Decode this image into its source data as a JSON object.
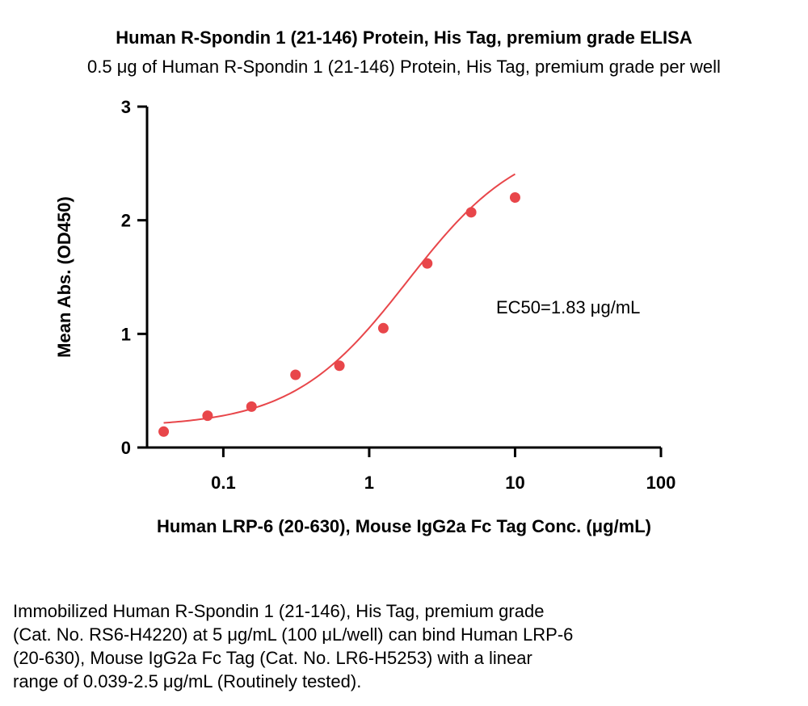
{
  "chart_data": {
    "type": "scatter",
    "title": "Human R-Spondin 1 (21-146) Protein, His Tag, premium grade ELISA",
    "subtitle": "0.5 μg of Human R-Spondin 1 (21-146) Protein, His Tag, premium grade per well",
    "xlabel": "Human LRP-6 (20-630), Mouse IgG2a Fc Tag Conc. (μg/mL)",
    "ylabel": "Mean Abs. (OD450)",
    "x_scale": "log",
    "xlim": [
      0.03,
      100
    ],
    "ylim": [
      0,
      3
    ],
    "x_ticks": [
      "0.1",
      "1",
      "10",
      "100"
    ],
    "y_ticks": [
      "0",
      "1",
      "2",
      "3"
    ],
    "grid": false,
    "annotation": "EC50=1.83 μg/mL",
    "color": "#e8464a",
    "series": [
      {
        "x": [
          0.039,
          0.078,
          0.156,
          0.3125,
          0.625,
          1.25,
          2.5,
          5,
          10
        ],
        "y": [
          0.14,
          0.28,
          0.36,
          0.64,
          0.72,
          1.05,
          1.62,
          2.07,
          2.2
        ]
      }
    ],
    "fit_curve": {
      "bottom": 0.18,
      "top": 2.75,
      "ec50": 1.83,
      "hill": 1.1,
      "x_range": [
        0.039,
        10
      ]
    }
  },
  "caption": [
    "Immobilized Human R-Spondin 1 (21-146), His Tag, premium grade",
    "(Cat. No. RS6-H4220) at 5 μg/mL (100 μL/well) can bind Human LRP-6",
    "(20-630), Mouse IgG2a Fc Tag (Cat. No. LR6-H5253) with a linear",
    "range of 0.039-2.5 μg/mL (Routinely tested)."
  ]
}
